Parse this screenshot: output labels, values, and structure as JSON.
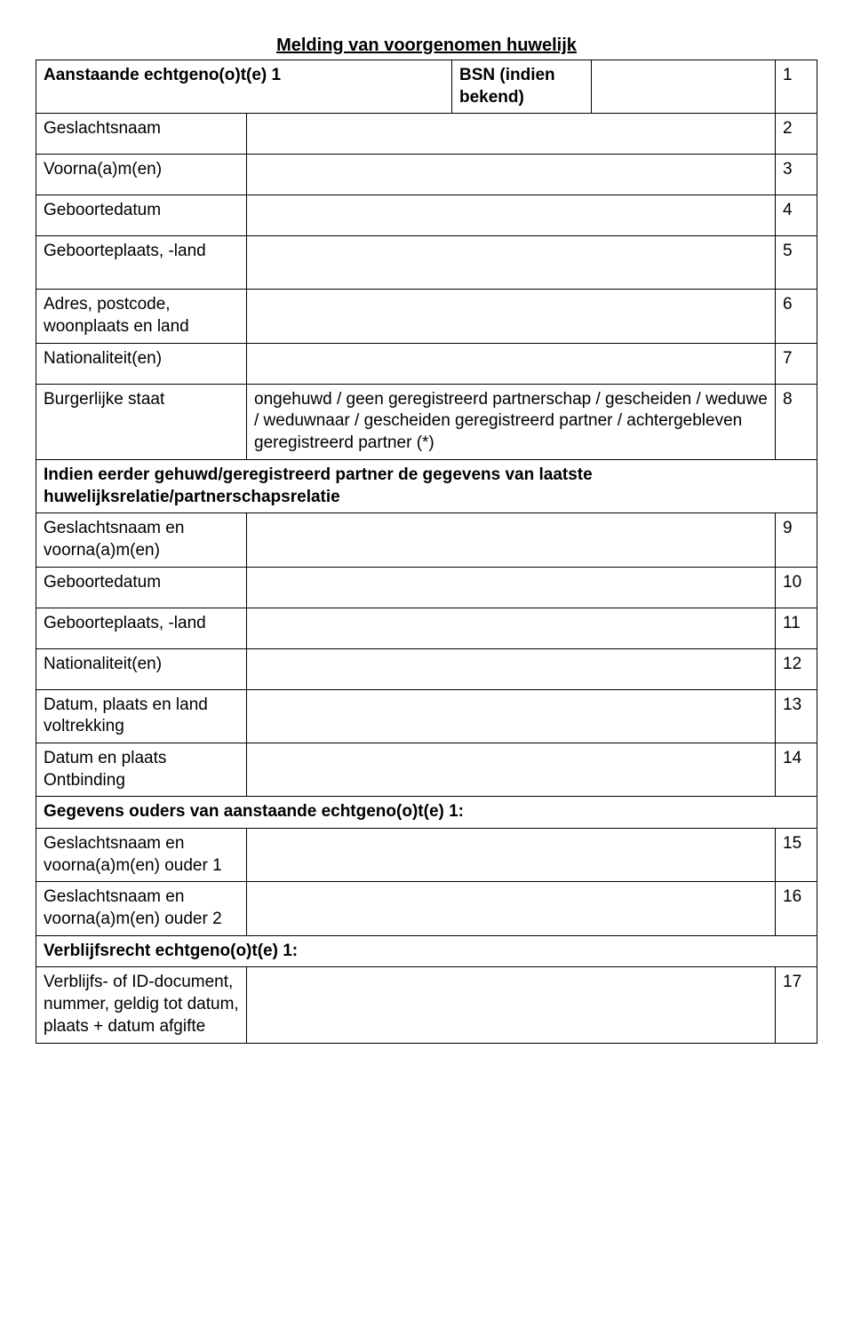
{
  "title": "Melding van voorgenomen huwelijk",
  "rows": {
    "r1": {
      "label": "Aanstaande echtgeno(o)t(e) 1",
      "bsn_label": "BSN (indien bekend)",
      "bsn_val": "",
      "num": "1"
    },
    "r2": {
      "label": "Geslachtsnaam",
      "num": "2"
    },
    "r3": {
      "label": "Voorna(a)m(en)",
      "num": "3"
    },
    "r4": {
      "label": "Geboortedatum",
      "num": "4"
    },
    "r5": {
      "label": "Geboorteplaats, -land",
      "num": "5"
    },
    "r6": {
      "label": "Adres, postcode, woonplaats en land",
      "num": "6"
    },
    "r7": {
      "label": "Nationaliteit(en)",
      "num": "7"
    },
    "r8": {
      "label": "Burgerlijke staat",
      "value": "ongehuwd / geen geregistreerd partnerschap / gescheiden / weduwe / weduwnaar / gescheiden geregistreerd partner / achtergebleven geregistreerd partner (*)",
      "num": "8"
    },
    "sec_prev": "Indien eerder gehuwd/geregistreerd partner de gegevens van laatste huwelijksrelatie/partnerschapsrelatie",
    "r9": {
      "label": "Geslachtsnaam en voorna(a)m(en)",
      "num": "9"
    },
    "r10": {
      "label": "Geboortedatum",
      "num": "10"
    },
    "r11": {
      "label": "Geboorteplaats, -land",
      "num": "11"
    },
    "r12": {
      "label": "Nationaliteit(en)",
      "num": "12"
    },
    "r13": {
      "label": "Datum, plaats en land voltrekking",
      "num": "13"
    },
    "r14": {
      "label": "Datum en plaats Ontbinding",
      "num": "14"
    },
    "sec_parents": "Gegevens ouders van aanstaande echtgeno(o)t(e) 1:",
    "r15": {
      "label": "Geslachtsnaam en voorna(a)m(en) ouder 1",
      "num": "15"
    },
    "r16": {
      "label": "Geslachtsnaam en voorna(a)m(en) ouder 2",
      "num": "16"
    },
    "sec_res": "Verblijfsrecht echtgeno(o)t(e) 1:",
    "r17": {
      "label": "Verblijfs- of ID-document, nummer, geldig tot datum, plaats + datum afgifte",
      "num": "17"
    }
  }
}
